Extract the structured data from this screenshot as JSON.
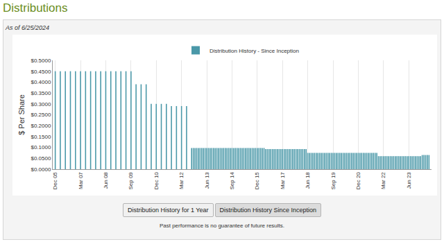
{
  "header": "Distributions",
  "as_of": "As of 6/25/2024",
  "buttons": [
    {
      "text": "Distribution History for 1 Year",
      "selected": false
    },
    {
      "text": "Distribution History Since Inception",
      "selected": true
    }
  ],
  "footnote": "Past performance is no guarantee of future results.",
  "chart_data": {
    "type": "bar",
    "y_label": "$ Per Share",
    "legend": "top",
    "grid": true,
    "ylim": [
      0,
      0.5
    ],
    "yticks": [
      {
        "value": 0,
        "label": "$0.0000"
      },
      {
        "value": 0.05,
        "label": "$0.0500"
      },
      {
        "value": 0.1,
        "label": "$0.1000"
      },
      {
        "value": 0.15,
        "label": "$0.1500"
      },
      {
        "value": 0.2,
        "label": "$0.2000"
      },
      {
        "value": 0.25,
        "label": "$0.2500"
      },
      {
        "value": 0.3,
        "label": "$0.3000"
      },
      {
        "value": 0.35,
        "label": "$0.3500"
      },
      {
        "value": 0.4,
        "label": "$0.4000"
      },
      {
        "value": 0.45,
        "label": "$0.4500"
      },
      {
        "value": 0.5,
        "label": "$0.5000"
      }
    ],
    "categories": [
      "Dec 05",
      null,
      null,
      null,
      null,
      null,
      null,
      null,
      null,
      null,
      null,
      null,
      null,
      null,
      null,
      "Mar 07",
      null,
      null,
      null,
      null,
      null,
      null,
      null,
      null,
      null,
      null,
      null,
      null,
      null,
      null,
      "Jun 08",
      null,
      null,
      null,
      null,
      null,
      null,
      null,
      null,
      null,
      null,
      null,
      null,
      null,
      null,
      "Sep 09",
      null,
      null,
      null,
      null,
      null,
      null,
      null,
      null,
      null,
      null,
      null,
      null,
      null,
      null,
      "Dec 10",
      null,
      null,
      null,
      null,
      null,
      null,
      null,
      null,
      null,
      null,
      null,
      null,
      null,
      null,
      "Mar 12",
      null,
      null,
      null,
      null,
      null,
      null,
      null,
      null,
      null,
      null,
      null,
      null,
      null,
      null,
      "Jun 13",
      null,
      null,
      null,
      null,
      null,
      null,
      null,
      null,
      null,
      null,
      null,
      null,
      null,
      null,
      "Sep 14",
      null,
      null,
      null,
      null,
      null,
      null,
      null,
      null,
      null,
      null,
      null,
      null,
      null,
      null,
      "Dec 15",
      null,
      null,
      null,
      null,
      null,
      null,
      null,
      null,
      null,
      null,
      null,
      null,
      null,
      null,
      "Mar 17",
      null,
      null,
      null,
      null,
      null,
      null,
      null,
      null,
      null,
      null,
      null,
      null,
      null,
      null,
      "Jun 18",
      null,
      null,
      null,
      null,
      null,
      null,
      null,
      null,
      null,
      null,
      null,
      null,
      null,
      null,
      "Sep 19",
      null,
      null,
      null,
      null,
      null,
      null,
      null,
      null,
      null,
      null,
      null,
      null,
      null,
      null,
      "Dec 20",
      null,
      null,
      null,
      null,
      null,
      null,
      null,
      null,
      null,
      null,
      null,
      null,
      null,
      null,
      "Mar 22",
      null,
      null,
      null,
      null,
      null,
      null,
      null,
      null,
      null,
      null,
      null,
      null,
      null,
      null,
      "Jun 23",
      null,
      null,
      null,
      null,
      null,
      null,
      null,
      null,
      null,
      null,
      null,
      null
    ],
    "series": [
      {
        "name": "Distribution History - Since Inception",
        "color": "#4a98a8",
        "values": [
          0.45,
          null,
          null,
          0.45,
          null,
          null,
          0.45,
          null,
          null,
          0.45,
          null,
          null,
          0.45,
          null,
          null,
          0.45,
          null,
          null,
          0.45,
          null,
          null,
          0.45,
          null,
          null,
          0.45,
          null,
          null,
          0.45,
          null,
          null,
          0.45,
          null,
          null,
          0.45,
          null,
          null,
          0.45,
          null,
          null,
          0.45,
          null,
          null,
          0.45,
          null,
          null,
          0.45,
          null,
          null,
          0.39,
          null,
          null,
          0.39,
          null,
          null,
          0.39,
          null,
          null,
          0.3,
          null,
          null,
          0.3,
          null,
          null,
          0.3,
          null,
          null,
          0.3,
          null,
          null,
          0.29,
          null,
          null,
          0.29,
          null,
          null,
          0.29,
          null,
          null,
          0.29,
          null,
          null,
          0.0975,
          0.0975,
          0.0975,
          0.0975,
          0.0975,
          0.0975,
          0.0975,
          0.0975,
          0.0975,
          0.0975,
          0.0975,
          0.0975,
          0.0975,
          0.0975,
          0.0975,
          0.0975,
          0.0975,
          0.0975,
          0.0975,
          0.0975,
          0.0975,
          0.0975,
          0.0975,
          0.0975,
          0.0975,
          0.0975,
          0.0975,
          0.0975,
          0.0975,
          0.0975,
          0.0975,
          0.0975,
          0.0975,
          0.0975,
          0.0975,
          0.0975,
          0.0975,
          0.0975,
          0.0975,
          0.0975,
          0.0975,
          0.0975,
          0.0975,
          0.0975,
          0.0925,
          0.0925,
          0.0925,
          0.0925,
          0.0925,
          0.0925,
          0.0925,
          0.0925,
          0.0925,
          0.0925,
          0.0925,
          0.0925,
          0.0925,
          0.0925,
          0.0925,
          0.0925,
          0.0925,
          0.0925,
          0.0925,
          0.0925,
          0.0925,
          0.0925,
          0.0925,
          0.0925,
          0.0925,
          0.075,
          0.075,
          0.075,
          0.075,
          0.075,
          0.075,
          0.075,
          0.075,
          0.075,
          0.075,
          0.075,
          0.075,
          0.075,
          0.075,
          0.075,
          0.075,
          0.075,
          0.075,
          0.075,
          0.075,
          0.075,
          0.075,
          0.075,
          0.075,
          0.075,
          0.075,
          0.075,
          0.075,
          0.075,
          0.075,
          0.075,
          0.075,
          0.075,
          0.075,
          0.075,
          0.075,
          0.075,
          0.075,
          0.075,
          0.075,
          0.075,
          0.075,
          0.06,
          0.06,
          0.06,
          0.06,
          0.06,
          0.06,
          0.06,
          0.06,
          0.06,
          0.06,
          0.06,
          0.06,
          0.06,
          0.06,
          0.06,
          0.06,
          0.06,
          0.06,
          0.06,
          0.06,
          0.06,
          0.06,
          0.06,
          0.06,
          0.06,
          0.06,
          0.065,
          0.065,
          0.065,
          0.065,
          0.065
        ]
      }
    ]
  }
}
